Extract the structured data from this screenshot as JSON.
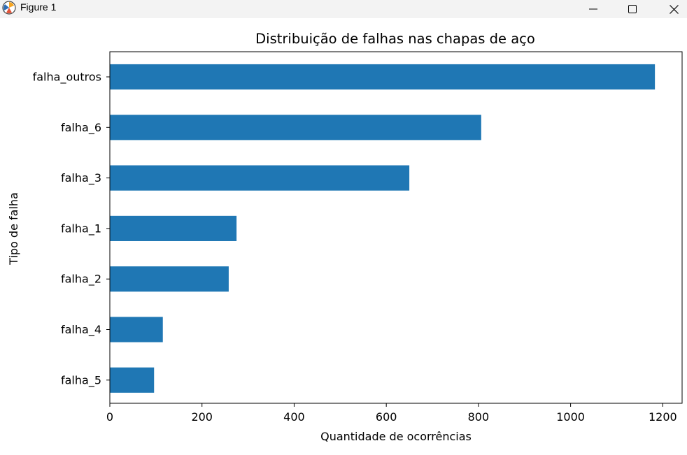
{
  "window": {
    "title": "Figure 1",
    "icons": {
      "app": "matplotlib-icon",
      "minimize": "minimize-icon",
      "maximize": "maximize-icon",
      "close": "close-icon"
    }
  },
  "colors": {
    "bar": "#1f77b4",
    "titlebar": "#f3f3f3"
  },
  "chart_data": {
    "type": "bar",
    "orientation": "horizontal",
    "title": "Distribuição de falhas nas chapas de aço",
    "xlabel": "Quantidade de ocorrências",
    "ylabel": "Tipo de falha",
    "categories": [
      "falha_outros",
      "falha_6",
      "falha_3",
      "falha_1",
      "falha_2",
      "falha_4",
      "falha_5"
    ],
    "values": [
      1183,
      806,
      650,
      275,
      258,
      115,
      96
    ],
    "xlim": [
      0,
      1242
    ],
    "xticks": [
      0,
      200,
      400,
      600,
      800,
      1000,
      1200
    ],
    "grid": false,
    "legend": "none"
  }
}
